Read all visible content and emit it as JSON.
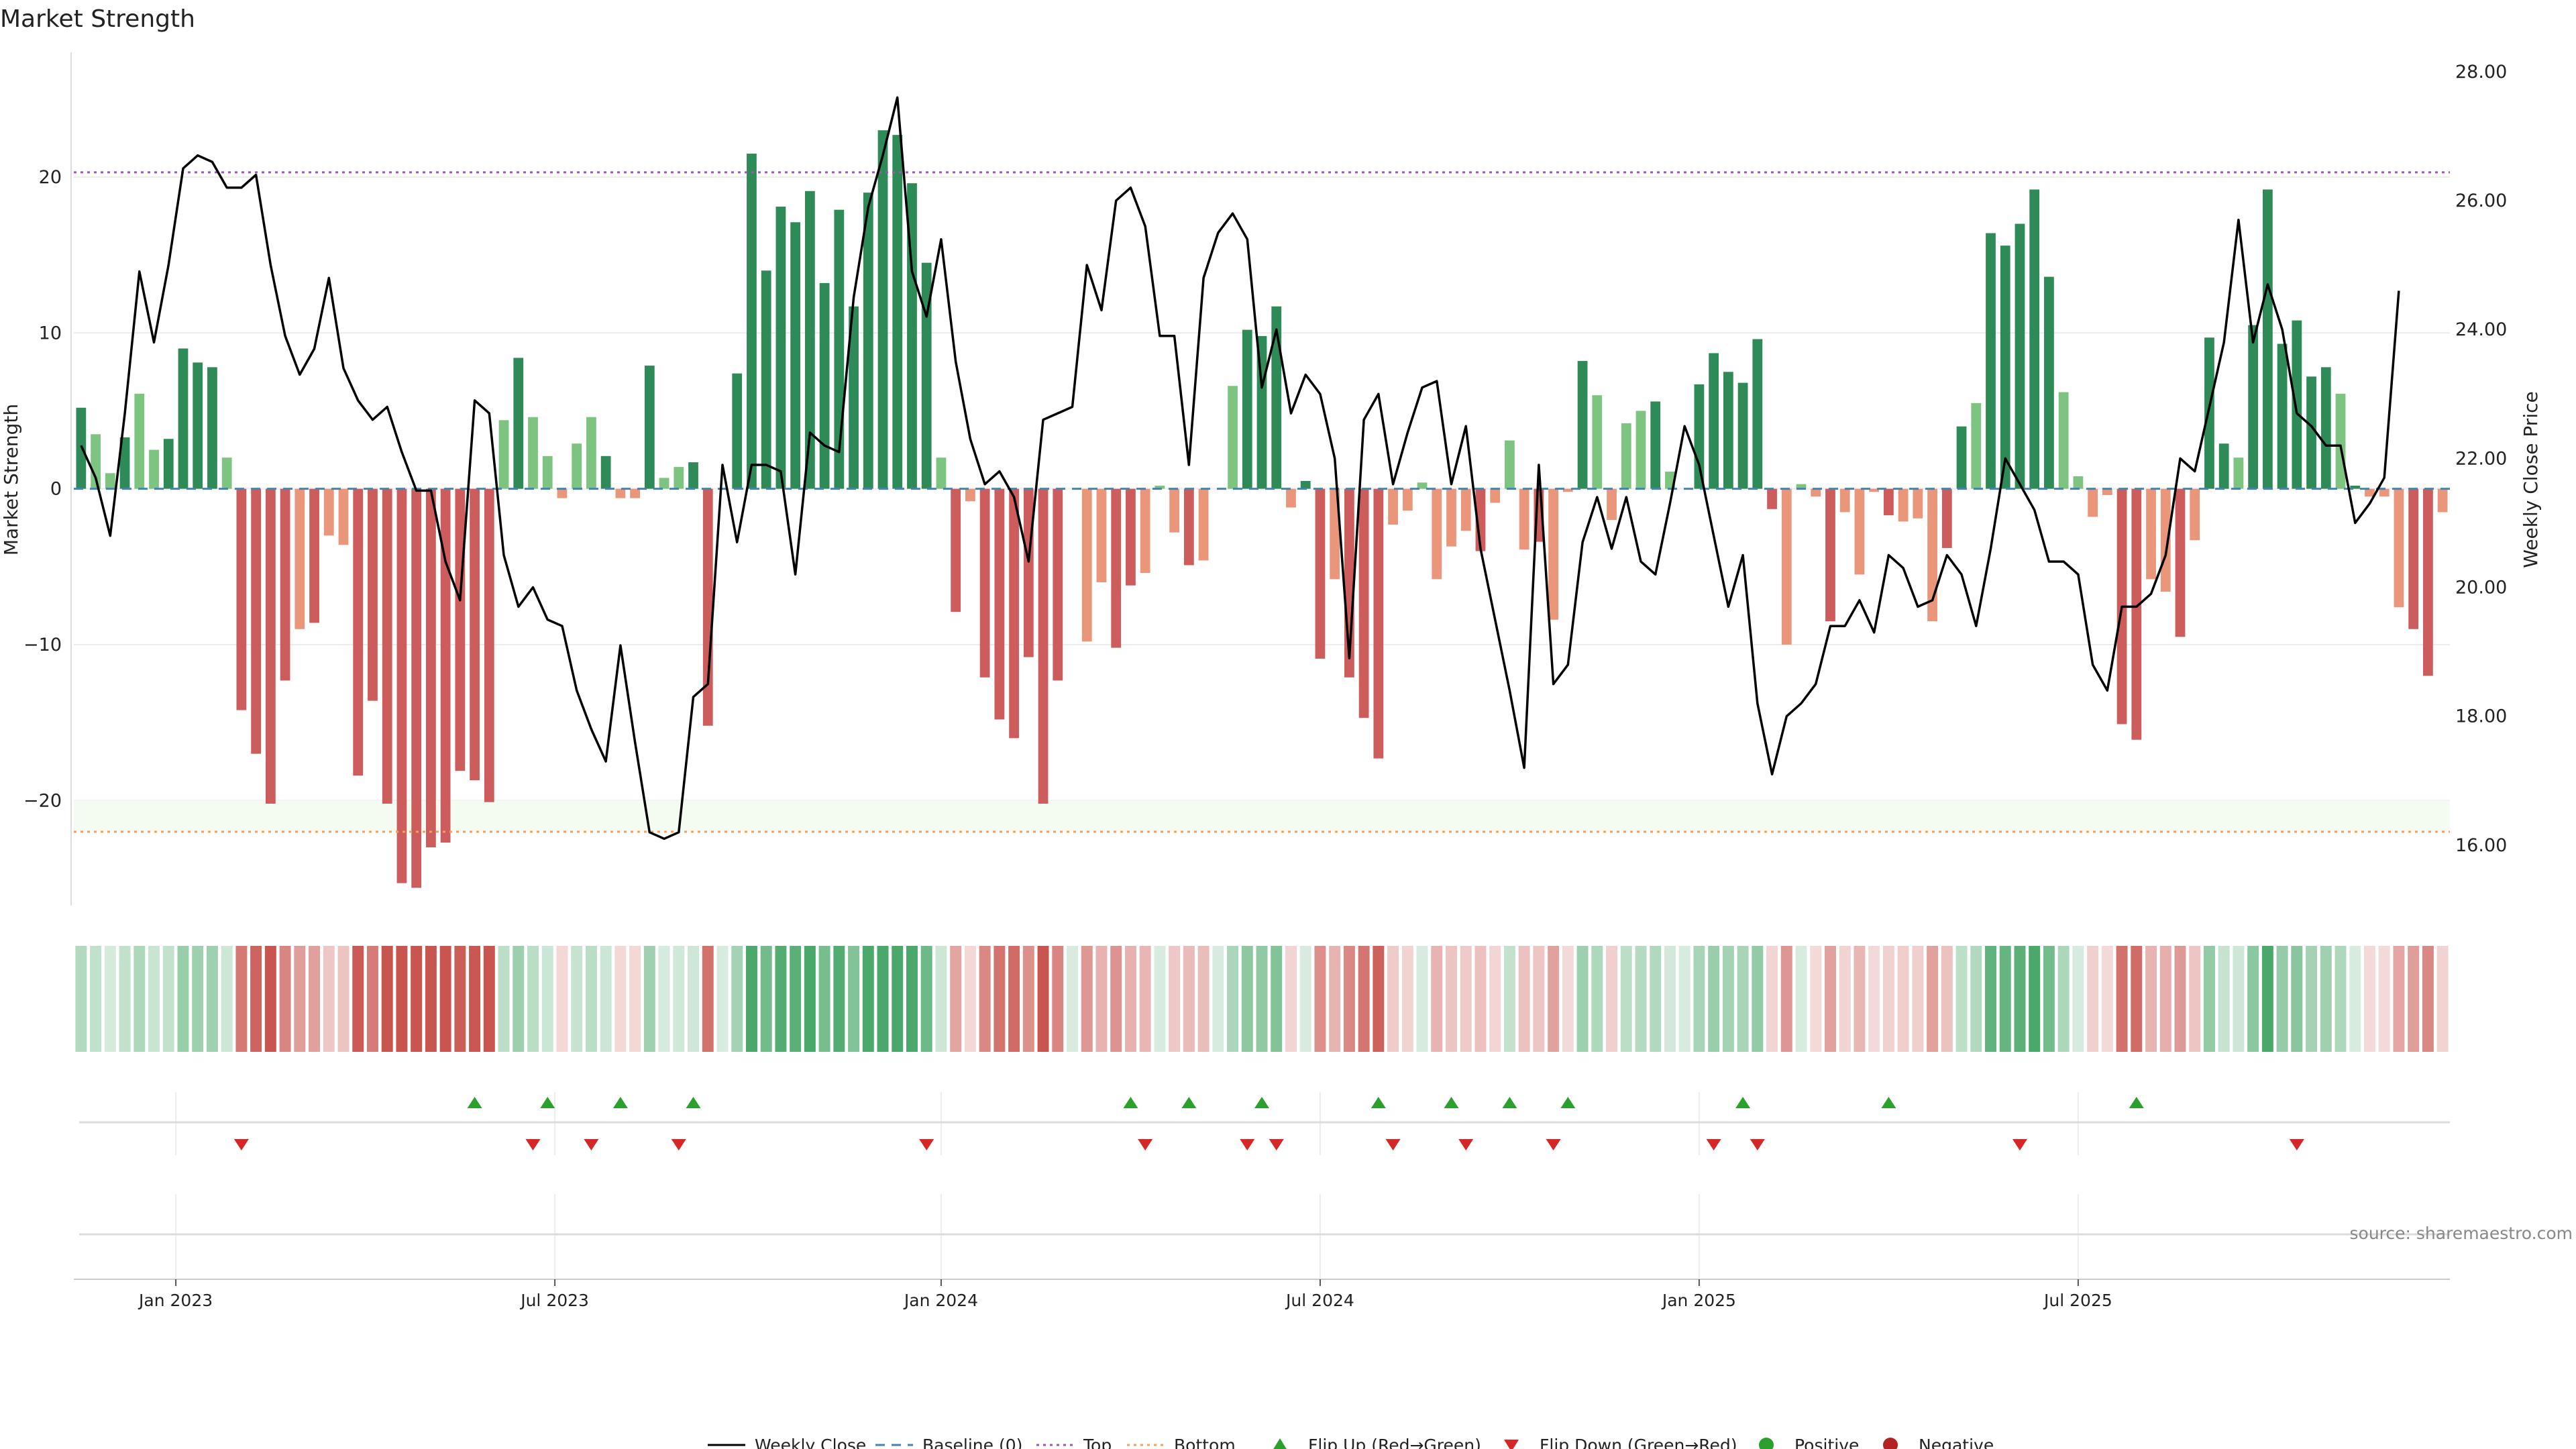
{
  "chart_data": {
    "type": "bar",
    "title": "Market Strength",
    "ylabel_left": "Market Strength",
    "ylabel_right": "Weekly Close Price",
    "ylim_left": [
      -27,
      28
    ],
    "ylim_right": [
      15.0,
      28.3
    ],
    "yticks_left": [
      "20",
      "10",
      "0",
      "−10",
      "−20"
    ],
    "yticks_left_values": [
      20,
      10,
      0,
      -10,
      -20
    ],
    "yticks_right": [
      "28.00",
      "26.00",
      "24.00",
      "22.00",
      "20.00",
      "18.00",
      "16.00"
    ],
    "yticks_right_values": [
      28,
      26,
      24,
      22,
      20,
      18,
      16
    ],
    "xticks": [
      "Jan 2023",
      "Jul 2023",
      "Jan 2024",
      "Jul 2024",
      "Jan 2025",
      "Jul 2025"
    ],
    "xticks_week": [
      7,
      33,
      59.5,
      85.5,
      111.5,
      137.5
    ],
    "top_level": 20.3,
    "bottom_level": -22,
    "strength": [
      5.2,
      3.5,
      1,
      3.3,
      6.1,
      2.5,
      3.2,
      9,
      8.1,
      7.8,
      2,
      -14.2,
      -17,
      -20.2,
      -12.3,
      -9,
      -8.6,
      -3,
      -3.6,
      -18.4,
      -13.6,
      -20.2,
      -25.3,
      -25.6,
      -23,
      -22.7,
      -18.1,
      -18.7,
      -20.1,
      4.4,
      8.4,
      4.6,
      2.1,
      -0.6,
      2.9,
      4.6,
      2.1,
      -0.6,
      -0.6,
      7.9,
      0.7,
      1.4,
      1.7,
      -15.2,
      0,
      7.4,
      21.5,
      14,
      18.1,
      17.1,
      19.1,
      13.2,
      17.9,
      11.7,
      19,
      23,
      22.7,
      19.6,
      14.5,
      2,
      -7.9,
      -0.8,
      -12.1,
      -14.8,
      -16,
      -10.8,
      -20.2,
      -12.3,
      0,
      -9.8,
      -6,
      -10.2,
      -6.2,
      -5.4,
      0.2,
      -2.8,
      -4.9,
      -4.6,
      0,
      6.6,
      10.2,
      9.8,
      11.7,
      -1.2,
      0.5,
      -10.9,
      -5.8,
      -12.1,
      -14.7,
      -17.3,
      -2.3,
      -1.4,
      0.4,
      -5.8,
      -3.7,
      -2.7,
      -4,
      -0.9,
      3.1,
      -3.9,
      -3.4,
      -8.4,
      -0.2,
      8.2,
      6,
      -2,
      4.2,
      5,
      5.6,
      1.1,
      0,
      6.7,
      8.7,
      7.5,
      6.8,
      9.6,
      -1.3,
      -10,
      0.3,
      -0.5,
      -8.5,
      -1.5,
      -5.5,
      -0.2,
      -1.7,
      -2.1,
      -1.9,
      -8.5,
      -3.8,
      4,
      5.5,
      16.4,
      15.6,
      17,
      19.2,
      13.6,
      6.2,
      0.8,
      -1.8,
      -0.4,
      -15.1,
      -16.1,
      -5.8,
      -6.6,
      -9.5,
      -3.3,
      9.7,
      2.9,
      2,
      10.5,
      19.2,
      9.3,
      10.8,
      7.2,
      7.8,
      6.1,
      0.2,
      -0.5,
      -0.5,
      -7.6,
      -9,
      -12,
      -1.5
    ],
    "close": [
      22.2,
      21.7,
      20.8,
      22.7,
      24.9,
      23.8,
      25.0,
      26.5,
      26.7,
      26.6,
      26.2,
      26.2,
      26.4,
      25.0,
      23.9,
      23.3,
      23.7,
      24.8,
      23.4,
      22.9,
      22.6,
      22.8,
      22.1,
      21.5,
      21.5,
      20.4,
      19.8,
      22.9,
      22.7,
      20.5,
      19.7,
      20.0,
      19.5,
      19.4,
      18.4,
      17.8,
      17.3,
      19.1,
      17.6,
      16.2,
      16.1,
      16.2,
      18.3,
      18.5,
      21.9,
      20.7,
      21.9,
      21.9,
      21.8,
      20.2,
      22.4,
      22.2,
      22.1,
      24.5,
      25.9,
      26.7,
      27.6,
      24.9,
      24.2,
      25.4,
      23.5,
      22.3,
      21.6,
      21.8,
      21.4,
      20.4,
      22.6,
      22.7,
      22.8,
      25.0,
      24.3,
      26.0,
      26.2,
      25.6,
      23.9,
      23.9,
      21.9,
      24.8,
      25.5,
      25.8,
      25.4,
      23.1,
      24.0,
      22.7,
      23.3,
      23.0,
      22.0,
      18.9,
      22.6,
      23.0,
      21.6,
      22.4,
      23.1,
      23.2,
      21.6,
      22.5,
      20.6,
      19.5,
      18.4,
      17.2,
      21.9,
      18.5,
      18.8,
      20.7,
      21.4,
      20.6,
      21.4,
      20.4,
      20.2,
      21.3,
      22.5,
      21.9,
      20.8,
      19.7,
      20.5,
      18.2,
      17.1,
      18.0,
      18.2,
      18.5,
      19.4,
      19.4,
      19.8,
      19.3,
      20.5,
      20.3,
      19.7,
      19.8,
      20.5,
      20.2,
      19.4,
      20.6,
      22.0,
      21.6,
      21.2,
      20.4,
      20.4,
      20.2,
      18.8,
      18.4,
      19.7,
      19.7,
      19.9,
      20.5,
      22.0,
      21.8,
      22.8,
      23.8,
      25.7,
      23.8,
      24.7,
      24.0,
      22.7,
      22.5,
      22.2,
      22.2,
      21.0,
      21.3,
      21.7,
      24.6
    ],
    "flip_up_weeks": [
      27,
      32,
      37,
      42,
      72,
      76,
      81,
      89,
      94,
      98,
      102,
      114,
      124,
      141
    ],
    "flip_down_weeks": [
      11,
      31,
      35,
      41,
      58,
      73,
      80,
      82,
      90,
      95,
      101,
      112,
      115,
      133,
      152
    ],
    "colors": {
      "strong_green": "#2e8b57",
      "light_green": "#7cc47f",
      "strong_red": "#cd5c5c",
      "light_red": "#e9967a",
      "close_line": "#000000",
      "baseline": "#4682b4",
      "top_line": "#9b59b6",
      "bottom_line": "#f0a060",
      "flip_up": "#2ca02c",
      "flip_down": "#d62728",
      "positive": "#2ca02c",
      "negative": "#b22222"
    },
    "legend": {
      "placement": "bottom-center",
      "items": [
        "Weekly Close",
        "Baseline (0)",
        "Top",
        "Bottom",
        "Flip Up (Red→Green)",
        "Flip Down (Green→Red)",
        "Positive",
        "Negative"
      ]
    },
    "source_note": "source: sharemaestro.com"
  }
}
